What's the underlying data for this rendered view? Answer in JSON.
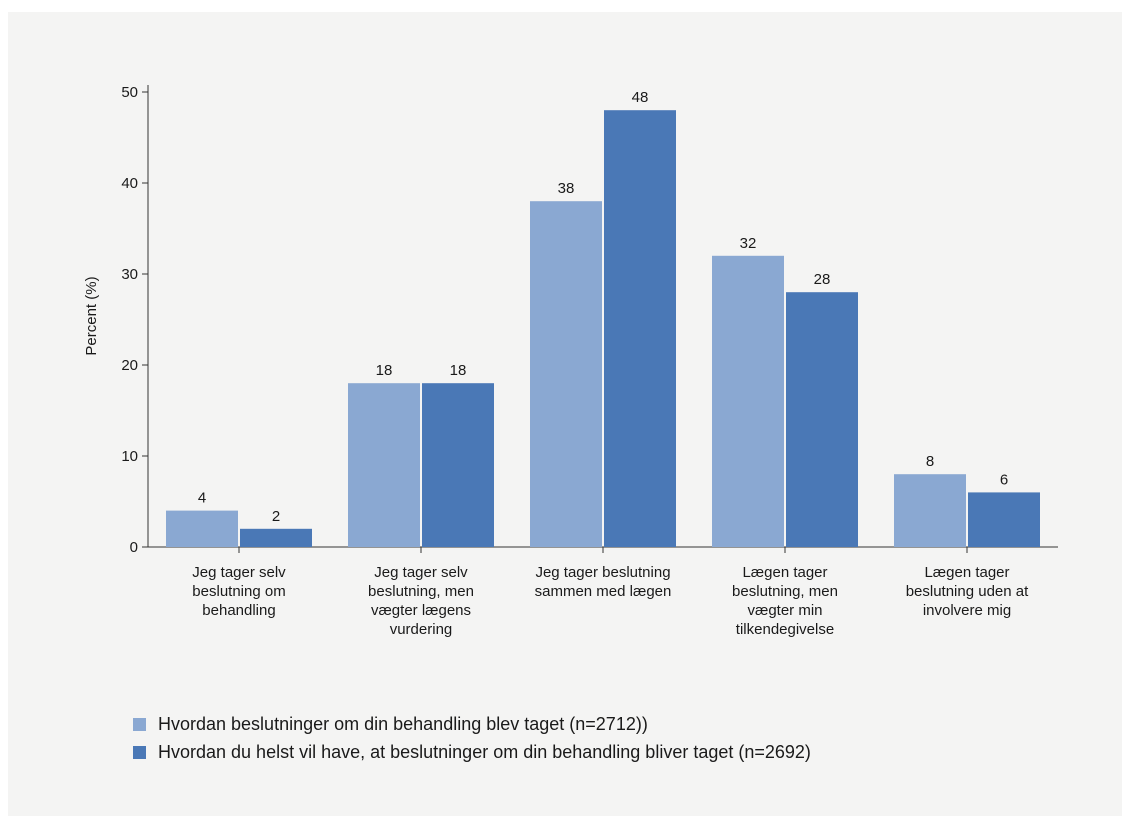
{
  "chart_data": {
    "type": "bar",
    "title": "",
    "xlabel": "",
    "ylabel": "Percent (%)",
    "ylim": [
      0,
      50
    ],
    "yticks": [
      0,
      10,
      20,
      30,
      40,
      50
    ],
    "grid": false,
    "legend_position": "bottom-left",
    "categories": [
      [
        "Jeg tager selv",
        "beslutning om",
        "behandling"
      ],
      [
        "Jeg tager selv",
        "beslutning, men",
        "vægter lægens",
        "vurdering"
      ],
      [
        "Jeg tager beslutning",
        "sammen med lægen"
      ],
      [
        "Lægen tager",
        "beslutning, men",
        "vægter min",
        "tilkendegivelse"
      ],
      [
        "Lægen tager",
        "beslutning uden at",
        "involvere mig"
      ]
    ],
    "series": [
      {
        "name": "Hvordan beslutninger om din behandling blev taget (n=2712))",
        "color": "#8aa8d2",
        "values": [
          4,
          18,
          38,
          32,
          8
        ]
      },
      {
        "name": "Hvordan du helst vil have, at beslutninger om din behandling bliver taget (n=2692)",
        "color": "#4a78b6",
        "values": [
          2,
          18,
          48,
          28,
          6
        ]
      }
    ]
  }
}
